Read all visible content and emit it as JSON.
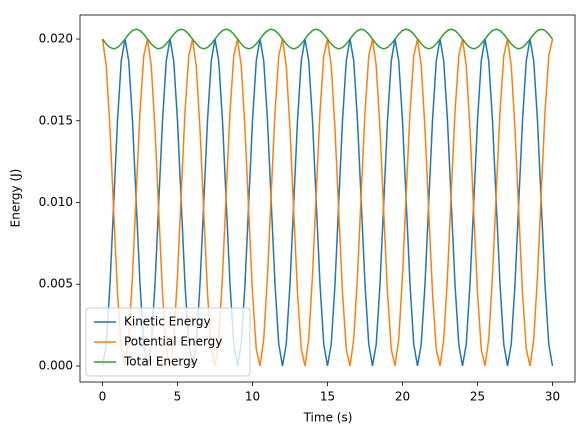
{
  "chart_data": {
    "type": "line",
    "xlabel": "Time (s)",
    "ylabel": "Energy (J)",
    "xlim": [
      -1.5,
      31.5
    ],
    "xticks": [
      0,
      5,
      10,
      15,
      20,
      25,
      30
    ],
    "ylim": [
      -0.00098,
      0.02147
    ],
    "yticks": [
      {
        "value": 0,
        "label": "0.000"
      },
      {
        "value": 0.005,
        "label": "0.005"
      },
      {
        "value": 0.01,
        "label": "0.010"
      },
      {
        "value": 0.015,
        "label": "0.015"
      },
      {
        "value": 0.02,
        "label": "0.020"
      }
    ],
    "legend": "lower left",
    "x": [
      0,
      0.25,
      0.5,
      0.75,
      1,
      1.25,
      1.5,
      1.75,
      2,
      2.25,
      2.5,
      2.75,
      3,
      3.25,
      3.5,
      3.75,
      4,
      4.25,
      4.5,
      4.75,
      5,
      5.25,
      5.5,
      5.75,
      6,
      6.25,
      6.5,
      6.75,
      7,
      7.25,
      7.5,
      7.75,
      8,
      8.25,
      8.5,
      8.75,
      9,
      9.25,
      9.5,
      9.75,
      10,
      10.25,
      10.5,
      10.75,
      11,
      11.25,
      11.5,
      11.75,
      12,
      12.25,
      12.5,
      12.75,
      13,
      13.25,
      13.5,
      13.75,
      14,
      14.25,
      14.5,
      14.75,
      15,
      15.25,
      15.5,
      15.75,
      16,
      16.25,
      16.5,
      16.75,
      17,
      17.25,
      17.5,
      17.75,
      18,
      18.25,
      18.5,
      18.75,
      19,
      19.25,
      19.5,
      19.75,
      20,
      20.25,
      20.5,
      20.75,
      21,
      21.25,
      21.5,
      21.75,
      22,
      22.25,
      22.5,
      22.75,
      23,
      23.25,
      23.5,
      23.75,
      24,
      24.25,
      24.5,
      24.75,
      25,
      25.25,
      25.5,
      25.75,
      26,
      26.25,
      26.5,
      26.75,
      27,
      27.25,
      27.5,
      27.75,
      28,
      28.25,
      28.5,
      28.75,
      29,
      29.25,
      29.5,
      29.75,
      30
    ],
    "series": [
      {
        "name": "Kinetic Energy",
        "color": "#1f77b4",
        "values": [
          0,
          0.00134,
          0.005,
          0.01,
          0.015,
          0.01866,
          0.02,
          0.01866,
          0.015,
          0.01,
          0.005,
          0.00134,
          0,
          0.00134,
          0.005,
          0.01,
          0.015,
          0.01866,
          0.02,
          0.01866,
          0.015,
          0.01,
          0.005,
          0.00134,
          0,
          0.00134,
          0.005,
          0.01,
          0.015,
          0.01866,
          0.02,
          0.01866,
          0.015,
          0.01,
          0.005,
          0.00134,
          0,
          0.00134,
          0.005,
          0.01,
          0.015,
          0.01866,
          0.02,
          0.01866,
          0.015,
          0.01,
          0.005,
          0.00134,
          0,
          0.00134,
          0.005,
          0.01,
          0.015,
          0.01866,
          0.02,
          0.01866,
          0.015,
          0.01,
          0.005,
          0.00134,
          0,
          0.00134,
          0.005,
          0.01,
          0.015,
          0.01866,
          0.02,
          0.01866,
          0.015,
          0.01,
          0.005,
          0.00134,
          0,
          0.00134,
          0.005,
          0.01,
          0.015,
          0.01866,
          0.02,
          0.01866,
          0.015,
          0.01,
          0.005,
          0.00134,
          0,
          0.00134,
          0.005,
          0.01,
          0.015,
          0.01866,
          0.02,
          0.01866,
          0.015,
          0.01,
          0.005,
          0.00134,
          0,
          0.00134,
          0.005,
          0.01,
          0.015,
          0.01866,
          0.02,
          0.01866,
          0.015,
          0.01,
          0.005,
          0.00134,
          0,
          0.00134,
          0.005,
          0.01,
          0.015,
          0.01866,
          0.02,
          0.01866,
          0.015,
          0.01,
          0.005,
          0.00134,
          0
        ]
      },
      {
        "name": "Potential Energy",
        "color": "#ff7f0e",
        "values": [
          0.02,
          0.01836,
          0.01448,
          0.0094,
          0.00448,
          0.00104,
          0,
          0.00164,
          0.00552,
          0.0106,
          0.01552,
          0.01896,
          0.02,
          0.01836,
          0.01448,
          0.0094,
          0.00448,
          0.00104,
          0,
          0.00164,
          0.00552,
          0.0106,
          0.01552,
          0.01896,
          0.02,
          0.01836,
          0.01448,
          0.0094,
          0.00448,
          0.00104,
          0,
          0.00164,
          0.00552,
          0.0106,
          0.01552,
          0.01896,
          0.02,
          0.01836,
          0.01448,
          0.0094,
          0.00448,
          0.00104,
          0,
          0.00164,
          0.00552,
          0.0106,
          0.01552,
          0.01896,
          0.02,
          0.01836,
          0.01448,
          0.0094,
          0.00448,
          0.00104,
          0,
          0.00164,
          0.00552,
          0.0106,
          0.01552,
          0.01896,
          0.02,
          0.01836,
          0.01448,
          0.0094,
          0.00448,
          0.00104,
          0,
          0.00164,
          0.00552,
          0.0106,
          0.01552,
          0.01896,
          0.02,
          0.01836,
          0.01448,
          0.0094,
          0.00448,
          0.00104,
          0,
          0.00164,
          0.00552,
          0.0106,
          0.01552,
          0.01896,
          0.02,
          0.01836,
          0.01448,
          0.0094,
          0.00448,
          0.00104,
          0,
          0.00164,
          0.00552,
          0.0106,
          0.01552,
          0.01896,
          0.02,
          0.01836,
          0.01448,
          0.0094,
          0.00448,
          0.00104,
          0,
          0.00164,
          0.00552,
          0.0106,
          0.01552,
          0.01896,
          0.02,
          0.01836,
          0.01448,
          0.0094,
          0.00448,
          0.00104,
          0,
          0.00164,
          0.00552,
          0.0106,
          0.01552,
          0.01896,
          0.02
        ]
      },
      {
        "name": "Total Energy",
        "color": "#2ca02c",
        "values": [
          0.02,
          0.0197,
          0.01948,
          0.0194,
          0.01948,
          0.0197,
          0.02,
          0.0203,
          0.02052,
          0.0206,
          0.02052,
          0.0203,
          0.02,
          0.0197,
          0.01948,
          0.0194,
          0.01948,
          0.0197,
          0.02,
          0.0203,
          0.02052,
          0.0206,
          0.02052,
          0.0203,
          0.02,
          0.0197,
          0.01948,
          0.0194,
          0.01948,
          0.0197,
          0.02,
          0.0203,
          0.02052,
          0.0206,
          0.02052,
          0.0203,
          0.02,
          0.0197,
          0.01948,
          0.0194,
          0.01948,
          0.0197,
          0.02,
          0.0203,
          0.02052,
          0.0206,
          0.02052,
          0.0203,
          0.02,
          0.0197,
          0.01948,
          0.0194,
          0.01948,
          0.0197,
          0.02,
          0.0203,
          0.02052,
          0.0206,
          0.02052,
          0.0203,
          0.02,
          0.0197,
          0.01948,
          0.0194,
          0.01948,
          0.0197,
          0.02,
          0.0203,
          0.02052,
          0.0206,
          0.02052,
          0.0203,
          0.02,
          0.0197,
          0.01948,
          0.0194,
          0.01948,
          0.0197,
          0.02,
          0.0203,
          0.02052,
          0.0206,
          0.02052,
          0.0203,
          0.02,
          0.0197,
          0.01948,
          0.0194,
          0.01948,
          0.0197,
          0.02,
          0.0203,
          0.02052,
          0.0206,
          0.02052,
          0.0203,
          0.02,
          0.0197,
          0.01948,
          0.0194,
          0.01948,
          0.0197,
          0.02,
          0.0203,
          0.02052,
          0.0206,
          0.02052,
          0.0203,
          0.02,
          0.0197,
          0.01948,
          0.0194,
          0.01948,
          0.0197,
          0.02,
          0.0203,
          0.02052,
          0.0206,
          0.02052,
          0.0203,
          0.02
        ]
      }
    ]
  }
}
